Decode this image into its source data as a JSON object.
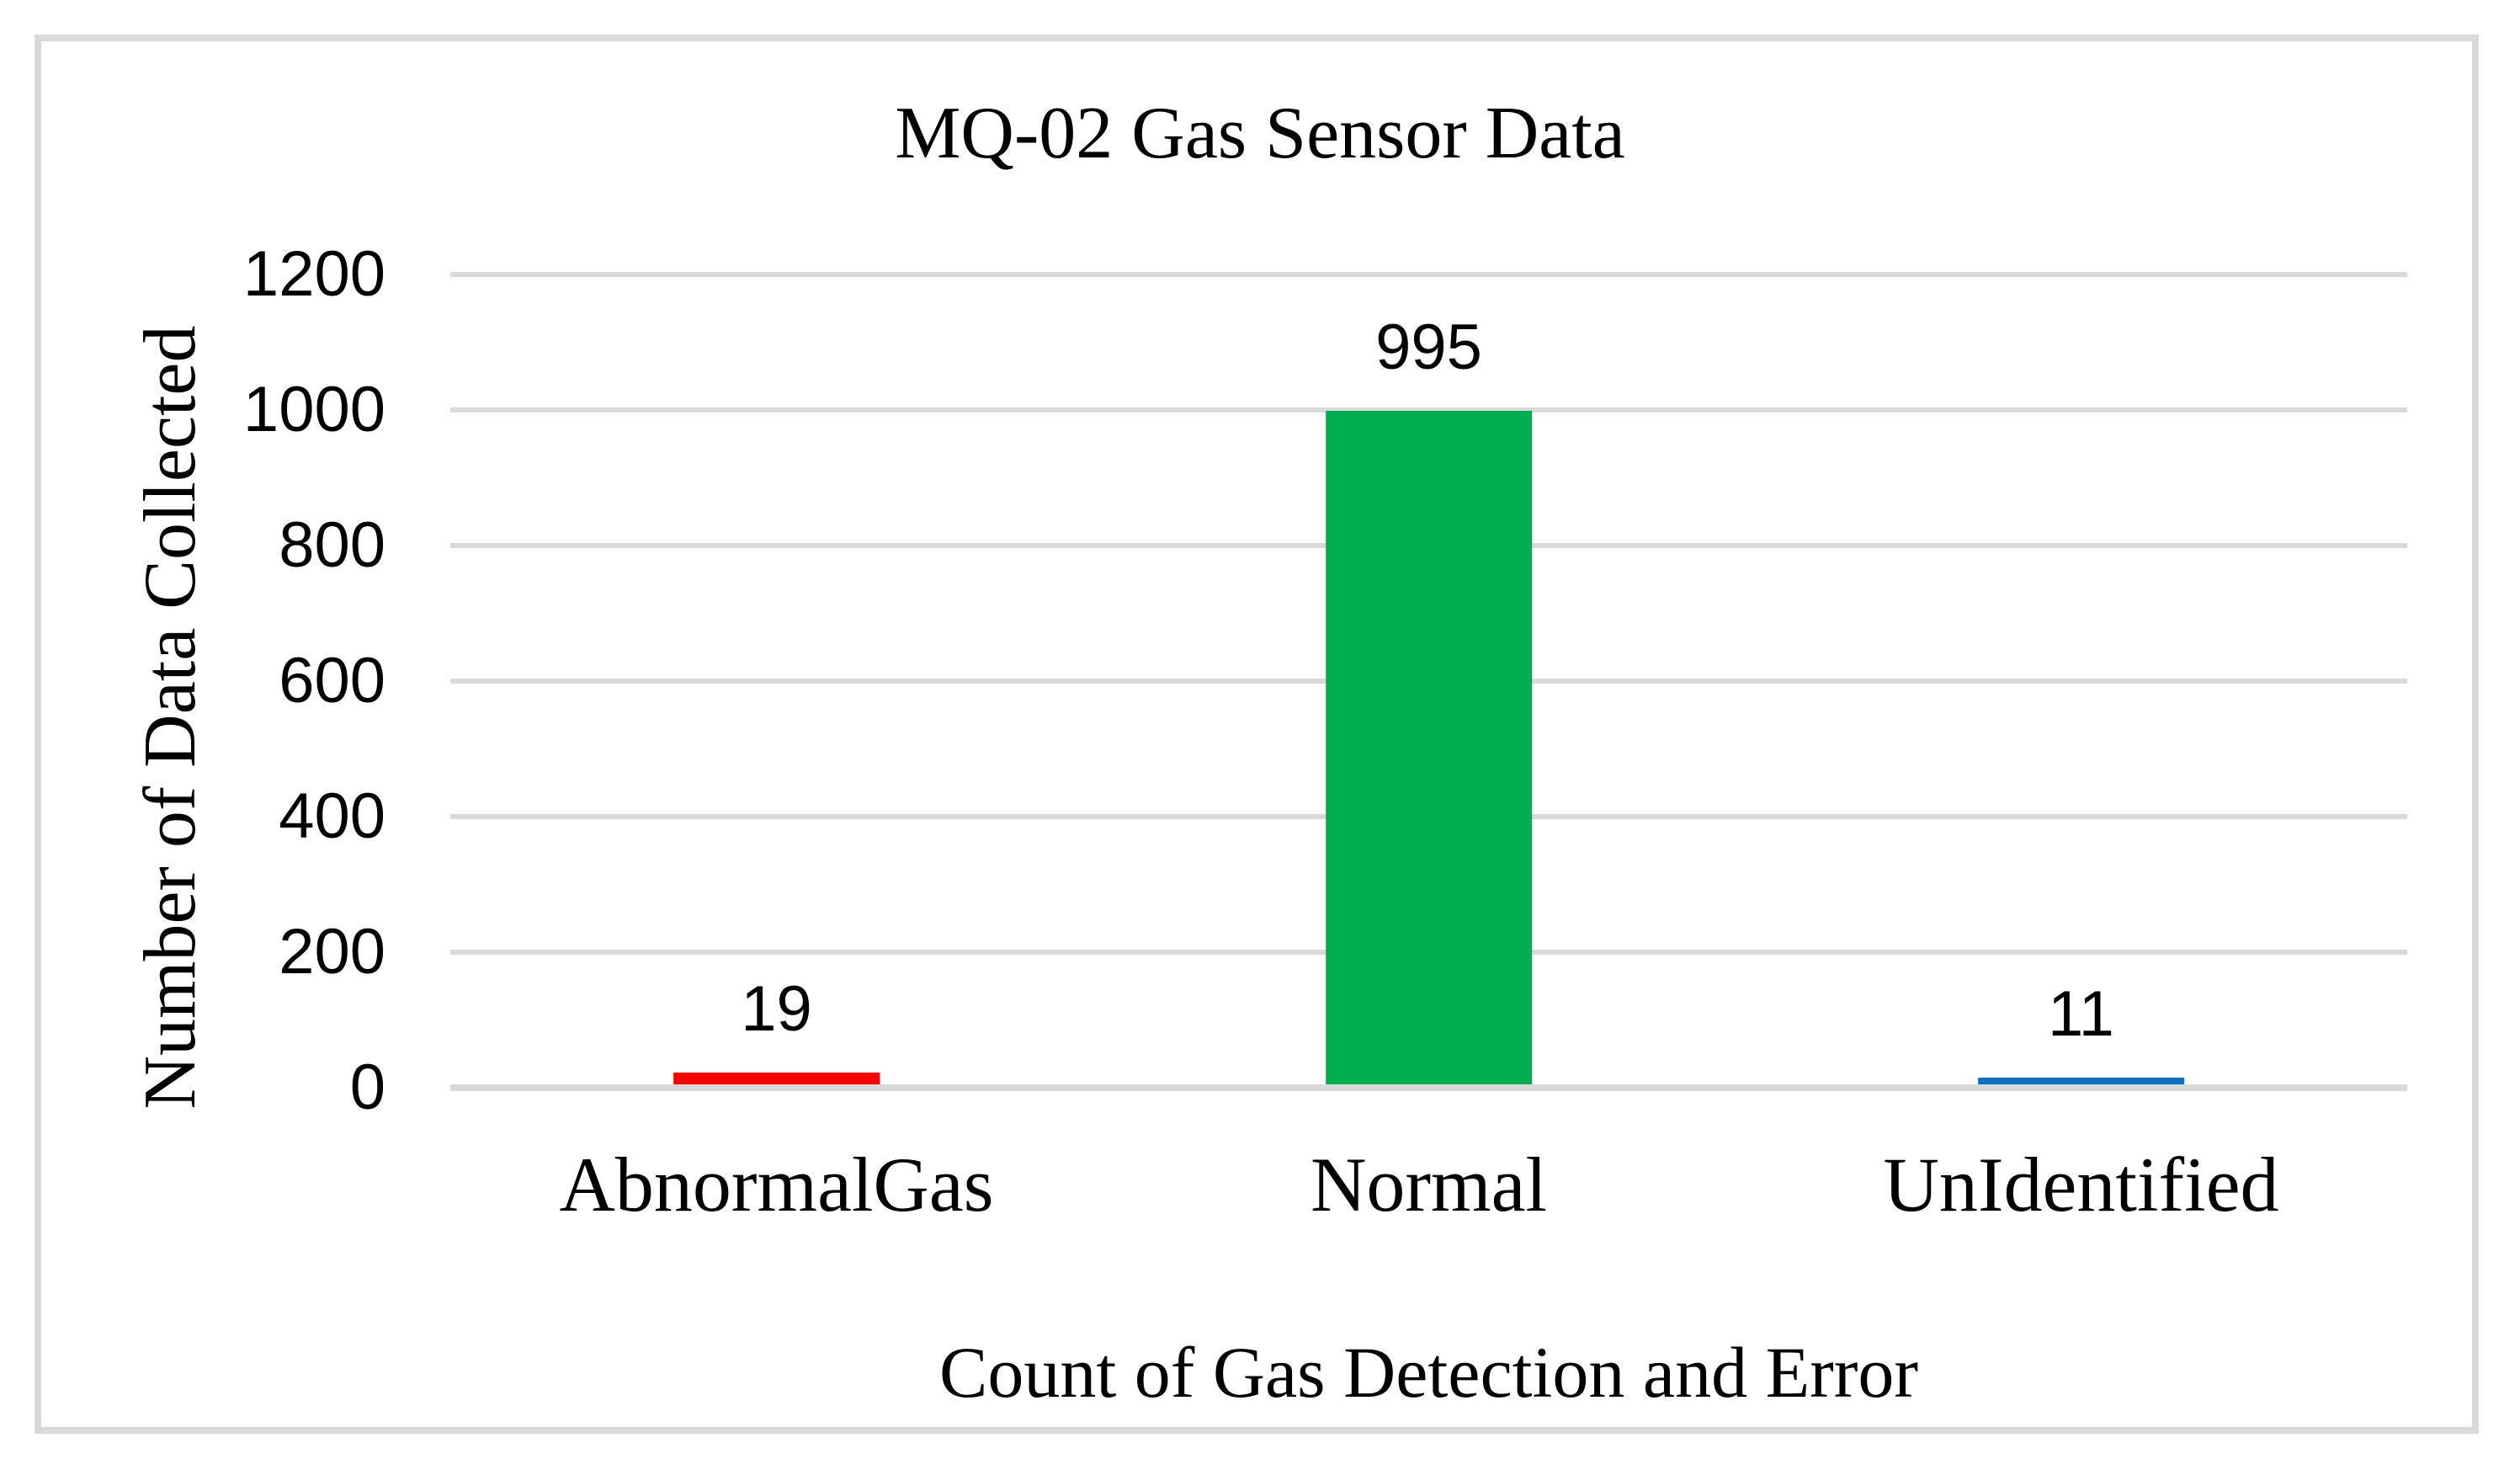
{
  "chart_data": {
    "type": "bar",
    "title": "MQ-02 Gas Sensor Data",
    "xlabel": "Count of Gas Detection and Error",
    "ylabel": "Number of Data Collected",
    "categories": [
      "AbnormalGas",
      "Normal",
      "UnIdentified"
    ],
    "values": [
      19,
      995,
      11
    ],
    "data_labels": [
      "19",
      "995",
      "11"
    ],
    "bar_colors": [
      "#FF0000",
      "#00AD4F",
      "#0A72C2"
    ],
    "ylim": [
      0,
      1200
    ],
    "yticks": [
      0,
      200,
      400,
      600,
      800,
      1000,
      1200
    ],
    "grid": true,
    "legend": "none",
    "style": {
      "gridline_color": "#D9D9D9",
      "axis_line_color": "#D9D9D9",
      "frame_color": "#D9D9D9",
      "background_color": "#FFFFFF",
      "text_color": "#000000"
    }
  }
}
